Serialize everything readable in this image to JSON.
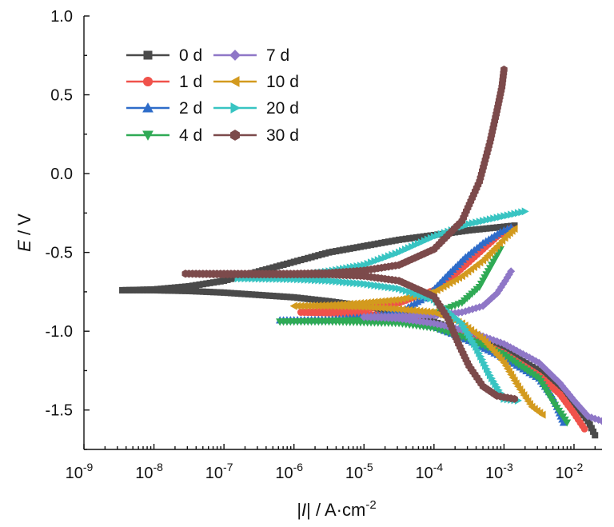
{
  "chart_data": {
    "type": "line",
    "title": "",
    "xlabel_parts": [
      "|",
      "I",
      "| / A·cm",
      "-2"
    ],
    "ylabel_parts": [
      "E",
      " / V"
    ],
    "x_scale": "log",
    "xlim_log10": [
      -9,
      -1.6
    ],
    "ylim": [
      -1.75,
      1.0
    ],
    "x_ticks": [
      {
        "base": "10",
        "exp": "-9",
        "log10": -9
      },
      {
        "base": "10",
        "exp": "-8",
        "log10": -8
      },
      {
        "base": "10",
        "exp": "-7",
        "log10": -7
      },
      {
        "base": "10",
        "exp": "-6",
        "log10": -6
      },
      {
        "base": "10",
        "exp": "-5",
        "log10": -5
      },
      {
        "base": "10",
        "exp": "-4",
        "log10": -4
      },
      {
        "base": "10",
        "exp": "-3",
        "log10": -3
      },
      {
        "base": "10",
        "exp": "-2",
        "log10": -2
      }
    ],
    "y_ticks": [
      {
        "label": "1.0",
        "value": 1.0
      },
      {
        "label": "0.5",
        "value": 0.5
      },
      {
        "label": "0.0",
        "value": 0.0
      },
      {
        "label": "-0.5",
        "value": -0.5
      },
      {
        "label": "-1.0",
        "value": -1.0
      },
      {
        "label": "-1.5",
        "value": -1.5
      }
    ],
    "legend_placement": "top-left",
    "legend_columns": 2,
    "grid": false,
    "series": [
      {
        "name": "0 d",
        "color": "#4a4a4a",
        "marker": "square",
        "cathodic": [
          [
            -8.45,
            -0.74
          ],
          [
            -8.0,
            -0.74
          ],
          [
            -7.5,
            -0.745
          ],
          [
            -7.0,
            -0.755
          ],
          [
            -6.5,
            -0.77
          ],
          [
            -6.0,
            -0.785
          ],
          [
            -5.5,
            -0.81
          ],
          [
            -5.0,
            -0.84
          ],
          [
            -4.5,
            -0.88
          ],
          [
            -4.0,
            -0.94
          ],
          [
            -3.5,
            -1.02
          ],
          [
            -3.0,
            -1.12
          ],
          [
            -2.5,
            -1.25
          ],
          [
            -2.2,
            -1.37
          ],
          [
            -2.0,
            -1.46
          ],
          [
            -1.8,
            -1.57
          ],
          [
            -1.7,
            -1.66
          ]
        ],
        "anodic": [
          [
            -8.45,
            -0.74
          ],
          [
            -8.0,
            -0.735
          ],
          [
            -7.5,
            -0.715
          ],
          [
            -7.0,
            -0.68
          ],
          [
            -6.5,
            -0.62
          ],
          [
            -6.0,
            -0.56
          ],
          [
            -5.5,
            -0.5
          ],
          [
            -5.0,
            -0.46
          ],
          [
            -4.5,
            -0.42
          ],
          [
            -4.0,
            -0.39
          ],
          [
            -3.5,
            -0.36
          ],
          [
            -2.85,
            -0.33
          ]
        ]
      },
      {
        "name": "1 d",
        "color": "#f0524b",
        "marker": "circle",
        "cathodic": [
          [
            -5.9,
            -0.88
          ],
          [
            -5.5,
            -0.885
          ],
          [
            -5.0,
            -0.89
          ],
          [
            -4.5,
            -0.91
          ],
          [
            -4.0,
            -0.96
          ],
          [
            -3.5,
            -1.04
          ],
          [
            -3.0,
            -1.14
          ],
          [
            -2.5,
            -1.28
          ],
          [
            -2.2,
            -1.4
          ],
          [
            -2.0,
            -1.52
          ],
          [
            -1.85,
            -1.62
          ]
        ],
        "anodic": [
          [
            -5.9,
            -0.88
          ],
          [
            -5.5,
            -0.875
          ],
          [
            -5.0,
            -0.86
          ],
          [
            -4.5,
            -0.82
          ],
          [
            -4.0,
            -0.74
          ],
          [
            -3.7,
            -0.64
          ],
          [
            -3.5,
            -0.56
          ],
          [
            -3.3,
            -0.48
          ],
          [
            -3.1,
            -0.4
          ],
          [
            -2.9,
            -0.35
          ]
        ]
      },
      {
        "name": "2 d",
        "color": "#2e6cc9",
        "marker": "triangle-up",
        "cathodic": [
          [
            -6.2,
            -0.93
          ],
          [
            -5.5,
            -0.93
          ],
          [
            -5.0,
            -0.92
          ],
          [
            -4.5,
            -0.93
          ],
          [
            -4.0,
            -0.97
          ],
          [
            -3.5,
            -1.06
          ],
          [
            -3.0,
            -1.17
          ],
          [
            -2.5,
            -1.3
          ],
          [
            -2.3,
            -1.42
          ],
          [
            -2.15,
            -1.58
          ]
        ],
        "anodic": [
          [
            -6.2,
            -0.93
          ],
          [
            -5.5,
            -0.925
          ],
          [
            -5.0,
            -0.91
          ],
          [
            -4.5,
            -0.88
          ],
          [
            -4.1,
            -0.78
          ],
          [
            -3.8,
            -0.64
          ],
          [
            -3.55,
            -0.53
          ],
          [
            -3.3,
            -0.44
          ],
          [
            -3.05,
            -0.37
          ],
          [
            -2.9,
            -0.34
          ]
        ]
      },
      {
        "name": "4 d",
        "color": "#2faa55",
        "marker": "triangle-down",
        "cathodic": [
          [
            -6.2,
            -0.94
          ],
          [
            -5.5,
            -0.94
          ],
          [
            -5.0,
            -0.945
          ],
          [
            -4.5,
            -0.95
          ],
          [
            -4.0,
            -0.98
          ],
          [
            -3.5,
            -1.05
          ],
          [
            -3.0,
            -1.15
          ],
          [
            -2.5,
            -1.3
          ],
          [
            -2.3,
            -1.45
          ],
          [
            -2.1,
            -1.58
          ]
        ],
        "anodic": [
          [
            -6.2,
            -0.94
          ],
          [
            -5.5,
            -0.935
          ],
          [
            -5.0,
            -0.93
          ],
          [
            -4.5,
            -0.92
          ],
          [
            -4.0,
            -0.89
          ],
          [
            -3.6,
            -0.82
          ],
          [
            -3.35,
            -0.72
          ],
          [
            -3.2,
            -0.6
          ],
          [
            -3.05,
            -0.48
          ]
        ]
      },
      {
        "name": "7 d",
        "color": "#8f77c7",
        "marker": "diamond",
        "cathodic": [
          [
            -5.0,
            -0.91
          ],
          [
            -4.5,
            -0.92
          ],
          [
            -4.0,
            -0.95
          ],
          [
            -3.5,
            -1.0
          ],
          [
            -3.0,
            -1.08
          ],
          [
            -2.5,
            -1.2
          ],
          [
            -2.2,
            -1.33
          ],
          [
            -2.0,
            -1.44
          ],
          [
            -1.8,
            -1.54
          ],
          [
            -1.6,
            -1.57
          ]
        ],
        "anodic": [
          [
            -5.0,
            -0.91
          ],
          [
            -4.5,
            -0.905
          ],
          [
            -4.0,
            -0.9
          ],
          [
            -3.6,
            -0.88
          ],
          [
            -3.3,
            -0.84
          ],
          [
            -3.1,
            -0.76
          ],
          [
            -2.98,
            -0.68
          ],
          [
            -2.9,
            -0.62
          ]
        ]
      },
      {
        "name": "10 d",
        "color": "#d39a1e",
        "marker": "triangle-left",
        "cathodic": [
          [
            -6.0,
            -0.84
          ],
          [
            -5.5,
            -0.84
          ],
          [
            -5.0,
            -0.845
          ],
          [
            -4.5,
            -0.86
          ],
          [
            -4.0,
            -0.88
          ],
          [
            -3.6,
            -0.95
          ],
          [
            -3.3,
            -1.05
          ],
          [
            -3.0,
            -1.2
          ],
          [
            -2.8,
            -1.35
          ],
          [
            -2.6,
            -1.48
          ],
          [
            -2.45,
            -1.53
          ]
        ],
        "anodic": [
          [
            -6.0,
            -0.84
          ],
          [
            -5.5,
            -0.835
          ],
          [
            -5.0,
            -0.82
          ],
          [
            -4.5,
            -0.8
          ],
          [
            -4.0,
            -0.75
          ],
          [
            -3.6,
            -0.65
          ],
          [
            -3.3,
            -0.55
          ],
          [
            -3.1,
            -0.46
          ],
          [
            -2.95,
            -0.39
          ],
          [
            -2.85,
            -0.35
          ]
        ]
      },
      {
        "name": "20 d",
        "color": "#38c4c2",
        "marker": "triangle-right",
        "cathodic": [
          [
            -6.8,
            -0.665
          ],
          [
            -6.0,
            -0.67
          ],
          [
            -5.5,
            -0.68
          ],
          [
            -5.0,
            -0.7
          ],
          [
            -4.5,
            -0.73
          ],
          [
            -4.0,
            -0.8
          ],
          [
            -3.6,
            -0.95
          ],
          [
            -3.4,
            -1.1
          ],
          [
            -3.2,
            -1.28
          ],
          [
            -3.0,
            -1.43
          ],
          [
            -2.8,
            -1.44
          ]
        ],
        "anodic": [
          [
            -6.8,
            -0.665
          ],
          [
            -6.0,
            -0.65
          ],
          [
            -5.5,
            -0.62
          ],
          [
            -5.0,
            -0.58
          ],
          [
            -4.5,
            -0.5
          ],
          [
            -4.0,
            -0.4
          ],
          [
            -3.5,
            -0.32
          ],
          [
            -3.0,
            -0.27
          ],
          [
            -2.7,
            -0.24
          ]
        ]
      },
      {
        "name": "30 d",
        "color": "#7c4a4b",
        "marker": "hexagon",
        "cathodic": [
          [
            -7.55,
            -0.635
          ],
          [
            -7.0,
            -0.64
          ],
          [
            -6.5,
            -0.64
          ],
          [
            -6.0,
            -0.64
          ],
          [
            -5.5,
            -0.64
          ],
          [
            -5.0,
            -0.65
          ],
          [
            -4.5,
            -0.68
          ],
          [
            -4.0,
            -0.78
          ],
          [
            -3.8,
            -0.92
          ],
          [
            -3.65,
            -1.08
          ],
          [
            -3.5,
            -1.22
          ],
          [
            -3.3,
            -1.35
          ],
          [
            -3.1,
            -1.41
          ],
          [
            -2.85,
            -1.43
          ]
        ],
        "anodic": [
          [
            -7.55,
            -0.635
          ],
          [
            -7.0,
            -0.635
          ],
          [
            -6.5,
            -0.635
          ],
          [
            -6.0,
            -0.635
          ],
          [
            -5.5,
            -0.63
          ],
          [
            -5.0,
            -0.615
          ],
          [
            -4.5,
            -0.58
          ],
          [
            -4.0,
            -0.48
          ],
          [
            -3.6,
            -0.3
          ],
          [
            -3.35,
            -0.05
          ],
          [
            -3.2,
            0.2
          ],
          [
            -3.1,
            0.4
          ],
          [
            -3.03,
            0.55
          ],
          [
            -3.0,
            0.66
          ]
        ]
      }
    ]
  }
}
